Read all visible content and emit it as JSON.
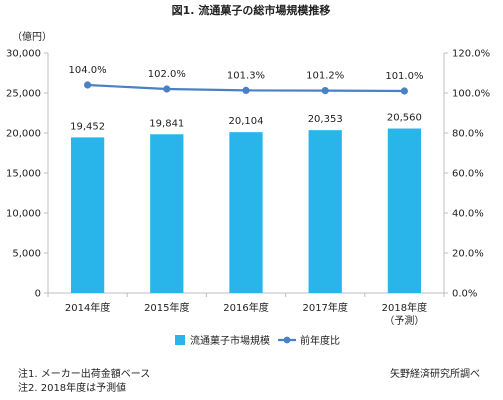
{
  "chart_data": {
    "type": "bar",
    "title": "図1. 流通菓子の総市場規模推移",
    "y_unit_label": "（億円）",
    "categories": [
      {
        "label": "2014年度",
        "sublabel": ""
      },
      {
        "label": "2015年度",
        "sublabel": ""
      },
      {
        "label": "2016年度",
        "sublabel": ""
      },
      {
        "label": "2017年度",
        "sublabel": ""
      },
      {
        "label": "2018年度",
        "sublabel": "（予測）"
      }
    ],
    "series": [
      {
        "name": "流通菓子市場規模",
        "kind": "bar",
        "axis": "left",
        "color": "#29b5ea",
        "values": [
          19452,
          19841,
          20104,
          20353,
          20560
        ],
        "value_labels": [
          "19,452",
          "19,841",
          "20,104",
          "20,353",
          "20,560"
        ]
      },
      {
        "name": "前年度比",
        "kind": "line",
        "axis": "right",
        "color": "#4a80c5",
        "values": [
          104.0,
          102.0,
          101.3,
          101.2,
          101.0
        ],
        "value_labels": [
          "104.0%",
          "102.0%",
          "101.3%",
          "101.2%",
          "101.0%"
        ]
      }
    ],
    "y_left": {
      "lim": [
        0,
        30000
      ],
      "ticks": [
        0,
        5000,
        10000,
        15000,
        20000,
        25000,
        30000
      ],
      "tick_labels": [
        "0",
        "5,000",
        "10,000",
        "15,000",
        "20,000",
        "25,000",
        "30,000"
      ]
    },
    "y_right": {
      "lim": [
        0,
        120
      ],
      "ticks": [
        0,
        20,
        40,
        60,
        80,
        100,
        120
      ],
      "tick_labels": [
        "0.0%",
        "20.0%",
        "40.0%",
        "60.0%",
        "80.0%",
        "100.0%",
        "120.0%"
      ]
    },
    "grid": false,
    "legend_position": "bottom-center"
  },
  "notes": [
    "注1. メーカー出荷金額ベース",
    "注2. 2018年度は予測値"
  ],
  "source": "矢野経済研究所調べ",
  "colors": {
    "axis": "#bfbfbf",
    "text": "#222222"
  }
}
